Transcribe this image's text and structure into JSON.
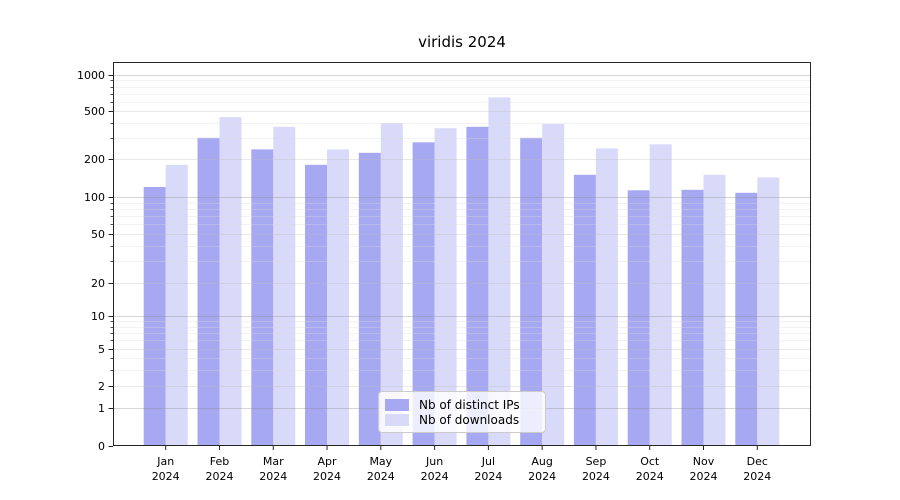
{
  "title": "viridis 2024",
  "chart_data": {
    "type": "bar",
    "title": "viridis 2024",
    "categories": [
      "Jan 2024",
      "Feb 2024",
      "Mar 2024",
      "Apr 2024",
      "May 2024",
      "Jun 2024",
      "Jul 2024",
      "Aug 2024",
      "Sep 2024",
      "Oct 2024",
      "Nov 2024",
      "Dec 2024"
    ],
    "series": [
      {
        "name": "Nb of distinct IPs",
        "color": "#a7a8f2",
        "values": [
          120,
          300,
          240,
          180,
          225,
          275,
          370,
          300,
          150,
          113,
          114,
          108
        ]
      },
      {
        "name": "Nb of downloads",
        "color": "#d9daf9",
        "values": [
          180,
          445,
          370,
          240,
          395,
          360,
          650,
          390,
          245,
          265,
          150,
          143
        ]
      }
    ],
    "yscale": "symlog",
    "yticks": [
      0,
      1,
      2,
      5,
      10,
      20,
      50,
      100,
      200,
      500,
      1000
    ],
    "ylim": [
      0,
      1200
    ],
    "xlabel": "",
    "ylabel": "",
    "grid": true,
    "legend_position": "lower center"
  },
  "colors": {
    "spine": "#262626",
    "tick_label": "#000000",
    "grid_major": "#8a8a8a",
    "grid_mid": "#bdbdbd",
    "grid_minor": "#d9d9d9"
  }
}
